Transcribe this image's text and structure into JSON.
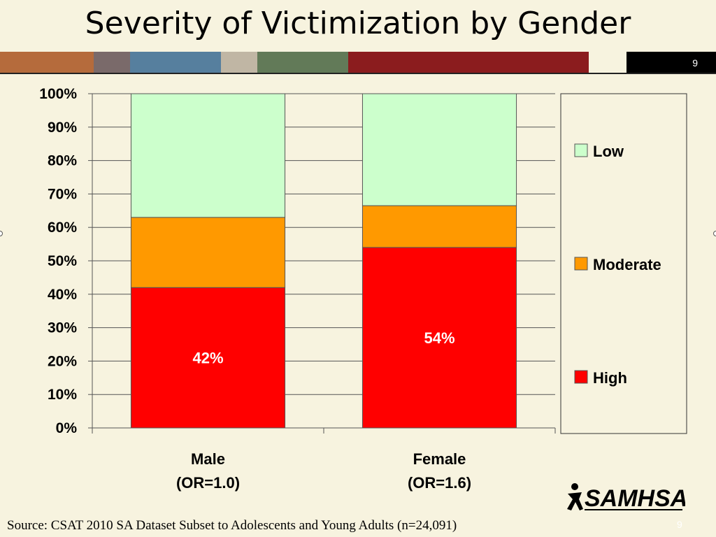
{
  "slide": {
    "title": "Severity of Victimization by Gender",
    "page_number": "9",
    "source": "Source: CSAT 2010 SA Dataset Subset to Adolescents and Young Adults (n=24,091)",
    "logo_text": "SAMHSA",
    "stripe_colors": [
      "#b56b3c",
      "#7a6a6a",
      "#567f9e",
      "#c0b6a4",
      "#627a58",
      "#8b1c1e",
      "#f7f3df",
      "#000000"
    ]
  },
  "chart_data": {
    "type": "bar",
    "stacked": true,
    "title": "",
    "xlabel": "",
    "ylabel": "",
    "categories": [
      [
        "Male",
        "(OR=1.0)"
      ],
      [
        "Female",
        "(OR=1.6)"
      ]
    ],
    "series": [
      {
        "name": "High",
        "color": "#ff0000",
        "values": [
          42,
          54
        ],
        "data_labels": [
          "42%",
          "54%"
        ]
      },
      {
        "name": "Moderate",
        "color": "#ff9900",
        "values": [
          21,
          12.5
        ]
      },
      {
        "name": "Low",
        "color": "#ccffcc",
        "values": [
          37,
          33.5
        ]
      }
    ],
    "legend_order": [
      "Low",
      "Moderate",
      "High"
    ],
    "legend_position": "right",
    "ylim": [
      0,
      100
    ],
    "yticks": [
      "0%",
      "10%",
      "20%",
      "30%",
      "40%",
      "50%",
      "60%",
      "70%",
      "80%",
      "90%",
      "100%"
    ],
    "grid": true
  }
}
